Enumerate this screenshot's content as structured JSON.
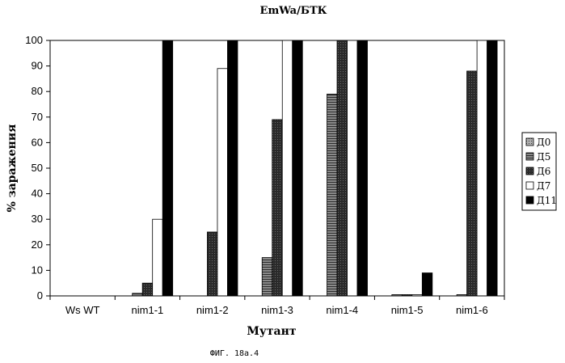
{
  "figure_caption": "ФИГ. 18а.4",
  "chart_data": {
    "type": "bar",
    "title": "EmWa/БТК",
    "xlabel": "Мутант",
    "ylabel": "% заражения",
    "ylim": [
      0,
      100
    ],
    "yticks": [
      0,
      10,
      20,
      30,
      40,
      50,
      60,
      70,
      80,
      90,
      100
    ],
    "grid": false,
    "legend_position": "right",
    "categories": [
      "Ws WT",
      "nim1-1",
      "nim1-2",
      "nim1-3",
      "nim1-4",
      "nim1-5",
      "nim1-6"
    ],
    "series": [
      {
        "name": "Д0",
        "fill": "#9a9a9a",
        "pattern": "dense-grid",
        "values": [
          0,
          0,
          0,
          0,
          0,
          0,
          0
        ]
      },
      {
        "name": "Д5",
        "fill": "#6a6a6a",
        "pattern": "horizontal-lines",
        "values": [
          0,
          1,
          0,
          15,
          79,
          0.5,
          0.5
        ]
      },
      {
        "name": "Д6",
        "fill": "#3a3a3a",
        "pattern": "dark-stipple",
        "values": [
          0,
          5,
          25,
          69,
          100,
          0.5,
          88
        ]
      },
      {
        "name": "Д7",
        "fill": "#ffffff",
        "pattern": "none",
        "values": [
          0,
          30,
          89,
          100,
          100,
          0.5,
          100
        ]
      },
      {
        "name": "Д11",
        "fill": "#000000",
        "pattern": "solid",
        "values": [
          0,
          100,
          100,
          100,
          100,
          9,
          100
        ]
      }
    ]
  }
}
